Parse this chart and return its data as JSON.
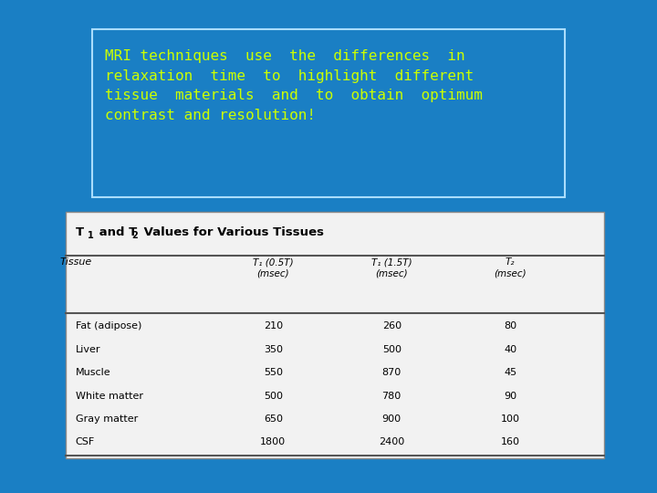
{
  "bg_color": "#1a7fc4",
  "text_box_edge_color": "#aaddff",
  "title_text": "MRI techniques  use  the  differences  in\nrelaxation  time  to  highlight  different\ntissue  materials  and  to  obtain  optimum\ncontrast and resolution!",
  "title_color": "#ccff00",
  "col_headers": [
    "Tissue",
    "T₁ (0.5T)\n(msec)",
    "T₁ (1.5T)\n(msec)",
    "T₂\n(msec)"
  ],
  "rows": [
    [
      "Fat (adipose)",
      "210",
      "260",
      "80"
    ],
    [
      "Liver",
      "350",
      "500",
      "40"
    ],
    [
      "Muscle",
      "550",
      "870",
      "45"
    ],
    [
      "White matter",
      "500",
      "780",
      "90"
    ],
    [
      "Gray matter",
      "650",
      "900",
      "100"
    ],
    [
      "CSF",
      "1800",
      "2400",
      "160"
    ]
  ],
  "table_bg": "#f2f2f2",
  "table_edge": "#888888",
  "line_color": "#555555"
}
